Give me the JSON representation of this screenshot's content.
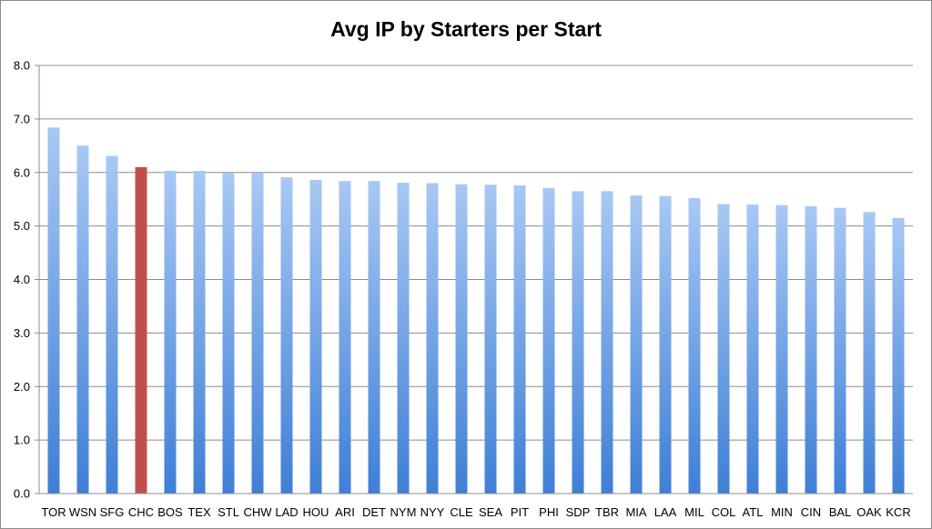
{
  "chart_data": {
    "type": "bar",
    "title": "Avg IP by Starters per Start",
    "xlabel": "",
    "ylabel": "",
    "ylim": [
      0,
      8
    ],
    "yticks": [
      "0.0",
      "1.0",
      "2.0",
      "3.0",
      "4.0",
      "5.0",
      "6.0",
      "7.0",
      "8.0"
    ],
    "grid": true,
    "legend": "none",
    "categories": [
      "TOR",
      "WSN",
      "SFG",
      "CHC",
      "BOS",
      "TEX",
      "STL",
      "CHW",
      "LAD",
      "HOU",
      "ARI",
      "DET",
      "NYM",
      "NYY",
      "CLE",
      "SEA",
      "PIT",
      "PHI",
      "SDP",
      "TBR",
      "MIA",
      "LAA",
      "MIL",
      "COL",
      "ATL",
      "MIN",
      "CIN",
      "BAL",
      "OAK",
      "KCR"
    ],
    "values": [
      6.84,
      6.5,
      6.31,
      6.1,
      6.03,
      6.03,
      5.99,
      5.99,
      5.91,
      5.86,
      5.84,
      5.84,
      5.81,
      5.8,
      5.78,
      5.77,
      5.76,
      5.71,
      5.65,
      5.65,
      5.57,
      5.56,
      5.52,
      5.41,
      5.4,
      5.39,
      5.37,
      5.34,
      5.26,
      5.15
    ],
    "highlight": "CHC",
    "colors": {
      "bar_top": "#a8c8f4",
      "bar_bottom": "#3f7fd6",
      "highlight": "#c0504d",
      "grid": "#8c8c8c"
    }
  }
}
